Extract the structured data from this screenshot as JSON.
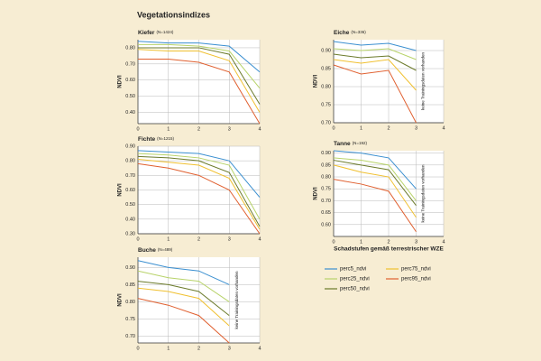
{
  "title": "Vegetationsindizes",
  "x_axis_label": "Schadstufen gemäß terrestrischer WZE",
  "chart_data": [
    {
      "type": "line",
      "title": "Kiefer",
      "subtitle": "(N=1424)",
      "y_axis_label": "NDVI",
      "xlim": [
        0,
        4
      ],
      "xticks": [
        0,
        1,
        2,
        3,
        4
      ],
      "ylim": [
        0.33,
        0.85
      ],
      "yticks": [
        {
          "value": 0.4,
          "label": "0.40"
        },
        {
          "value": 0.5,
          "label": "0.50"
        },
        {
          "value": 0.6,
          "label": "0.60"
        },
        {
          "value": 0.7,
          "label": "0.70"
        },
        {
          "value": 0.8,
          "label": "0.80"
        }
      ],
      "grid": true,
      "x": [
        0,
        1,
        2,
        3,
        4
      ],
      "series": [
        {
          "name": "perc5_ndvi",
          "color": "#3a8fd0",
          "values": [
            0.84,
            0.83,
            0.83,
            0.81,
            0.65
          ]
        },
        {
          "name": "perc25_ndvi",
          "color": "#b8d36a",
          "values": [
            0.82,
            0.82,
            0.81,
            0.78,
            0.55
          ]
        },
        {
          "name": "perc50_ndvi",
          "color": "#6b7a2a",
          "values": [
            0.8,
            0.8,
            0.8,
            0.76,
            0.45
          ]
        },
        {
          "name": "perc75_ndvi",
          "color": "#f0c030",
          "values": [
            0.79,
            0.78,
            0.78,
            0.72,
            0.4
          ]
        },
        {
          "name": "perc95_ndvi",
          "color": "#e06030",
          "values": [
            0.73,
            0.73,
            0.71,
            0.65,
            0.33
          ]
        }
      ]
    },
    {
      "type": "line",
      "title": "Eiche",
      "subtitle": "(N=336)",
      "y_axis_label": "NDVI",
      "annotation": "keine Trainingsdaten vorhanden",
      "xlim": [
        0,
        4
      ],
      "xticks": [
        0,
        1,
        2,
        3,
        4
      ],
      "ylim": [
        0.7,
        0.93
      ],
      "yticks": [
        {
          "value": 0.7,
          "label": "0.70"
        },
        0.75,
        {
          "value": 0.8,
          "label": "0.80"
        },
        0.85,
        {
          "value": 0.9,
          "label": "0.90"
        }
      ],
      "grid": true,
      "x": [
        0,
        1,
        2,
        3
      ],
      "series": [
        {
          "name": "perc5_ndvi",
          "color": "#3a8fd0",
          "values": [
            0.925,
            0.915,
            0.92,
            0.9
          ]
        },
        {
          "name": "perc25_ndvi",
          "color": "#b8d36a",
          "values": [
            0.905,
            0.9,
            0.905,
            0.875
          ]
        },
        {
          "name": "perc50_ndvi",
          "color": "#6b7a2a",
          "values": [
            0.89,
            0.88,
            0.885,
            0.845
          ]
        },
        {
          "name": "perc75_ndvi",
          "color": "#f0c030",
          "values": [
            0.875,
            0.865,
            0.875,
            0.79
          ]
        },
        {
          "name": "perc95_ndvi",
          "color": "#e06030",
          "values": [
            0.86,
            0.835,
            0.845,
            0.7
          ]
        }
      ]
    },
    {
      "type": "line",
      "title": "Fichte",
      "subtitle": "(N=1215)",
      "y_axis_label": "NDVI",
      "xlim": [
        0,
        4
      ],
      "xticks": [
        0,
        1,
        2,
        3,
        4
      ],
      "ylim": [
        0.3,
        0.9
      ],
      "yticks": [
        {
          "value": 0.3,
          "label": "0.30"
        },
        {
          "value": 0.4,
          "label": "0.40"
        },
        {
          "value": 0.5,
          "label": "0.50"
        },
        {
          "value": 0.6,
          "label": "0.60"
        },
        {
          "value": 0.7,
          "label": "0.70"
        },
        {
          "value": 0.8,
          "label": "0.80"
        },
        {
          "value": 0.9,
          "label": "0.90"
        }
      ],
      "grid": true,
      "x": [
        0,
        1,
        2,
        3,
        4
      ],
      "series": [
        {
          "name": "perc5_ndvi",
          "color": "#3a8fd0",
          "values": [
            0.87,
            0.86,
            0.85,
            0.8,
            0.55
          ]
        },
        {
          "name": "perc25_ndvi",
          "color": "#b8d36a",
          "values": [
            0.85,
            0.84,
            0.82,
            0.77,
            0.4
          ]
        },
        {
          "name": "perc50_ndvi",
          "color": "#6b7a2a",
          "values": [
            0.83,
            0.82,
            0.8,
            0.72,
            0.35
          ]
        },
        {
          "name": "perc75_ndvi",
          "color": "#f0c030",
          "values": [
            0.81,
            0.79,
            0.77,
            0.68,
            0.33
          ]
        },
        {
          "name": "perc95_ndvi",
          "color": "#e06030",
          "values": [
            0.78,
            0.75,
            0.7,
            0.6,
            0.3
          ]
        }
      ]
    },
    {
      "type": "line",
      "title": "Tanne",
      "subtitle": "(N=192)",
      "y_axis_label": "NDVI",
      "annotation": "keine Trainingsdaten vorhanden",
      "xlim": [
        0,
        4
      ],
      "xticks": [
        0,
        1,
        2,
        3,
        4
      ],
      "ylim": [
        0.55,
        0.91
      ],
      "yticks": [
        {
          "value": 0.6,
          "label": "0.60"
        },
        0.65,
        {
          "value": 0.7,
          "label": "0.70"
        },
        0.75,
        {
          "value": 0.8,
          "label": "0.80"
        },
        0.85,
        {
          "value": 0.9,
          "label": "0.90"
        }
      ],
      "grid": true,
      "x": [
        0,
        1,
        2,
        3
      ],
      "series": [
        {
          "name": "perc5_ndvi",
          "color": "#3a8fd0",
          "values": [
            0.91,
            0.9,
            0.88,
            0.75
          ]
        },
        {
          "name": "perc25_ndvi",
          "color": "#b8d36a",
          "values": [
            0.88,
            0.87,
            0.85,
            0.7
          ]
        },
        {
          "name": "perc50_ndvi",
          "color": "#6b7a2a",
          "values": [
            0.87,
            0.85,
            0.83,
            0.68
          ]
        },
        {
          "name": "perc75_ndvi",
          "color": "#f0c030",
          "values": [
            0.85,
            0.82,
            0.8,
            0.63
          ]
        },
        {
          "name": "perc95_ndvi",
          "color": "#e06030",
          "values": [
            0.79,
            0.77,
            0.74,
            0.57
          ]
        }
      ]
    },
    {
      "type": "line",
      "title": "Buche",
      "subtitle": "(N=489)",
      "y_axis_label": "NDVI",
      "annotation": "keine Trainingsdaten vorhanden",
      "xlim": [
        0,
        4
      ],
      "xticks": [
        0,
        1,
        2,
        3,
        4
      ],
      "ylim": [
        0.68,
        0.93
      ],
      "yticks": [
        {
          "value": 0.7,
          "label": "0.70"
        },
        0.75,
        {
          "value": 0.8,
          "label": "0.80"
        },
        0.85,
        {
          "value": 0.9,
          "label": "0.90"
        }
      ],
      "grid": true,
      "x": [
        0,
        1,
        2,
        3
      ],
      "series": [
        {
          "name": "perc5_ndvi",
          "color": "#3a8fd0",
          "values": [
            0.92,
            0.9,
            0.89,
            0.85
          ]
        },
        {
          "name": "perc25_ndvi",
          "color": "#b8d36a",
          "values": [
            0.89,
            0.87,
            0.86,
            0.8
          ]
        },
        {
          "name": "perc50_ndvi",
          "color": "#6b7a2a",
          "values": [
            0.86,
            0.85,
            0.83,
            0.76
          ]
        },
        {
          "name": "perc75_ndvi",
          "color": "#f0c030",
          "values": [
            0.84,
            0.83,
            0.81,
            0.73
          ]
        },
        {
          "name": "perc95_ndvi",
          "color": "#e06030",
          "values": [
            0.81,
            0.79,
            0.76,
            0.68
          ]
        }
      ]
    }
  ]
}
